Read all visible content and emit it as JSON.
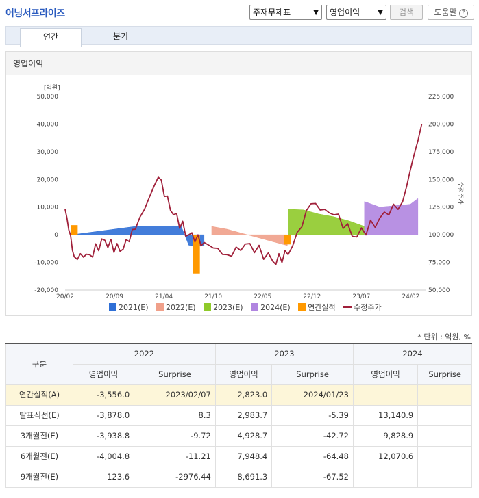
{
  "header": {
    "title": "어닝서프라이즈",
    "statement_select": "주재무제표",
    "metric_select": "영업이익",
    "search_label": "검색",
    "help_label": "도움말",
    "help_mark": "?"
  },
  "tabs": [
    {
      "label": "연간",
      "active": true
    },
    {
      "label": "분기",
      "active": false
    }
  ],
  "panel": {
    "title": "영업이익"
  },
  "chart_data": {
    "type": "area+line",
    "left_axis": {
      "unit_label": "[억원]",
      "ticks": [
        "50,000",
        "40,000",
        "30,000",
        "20,000",
        "10,000",
        "0",
        "-10,000",
        "-20,000"
      ],
      "range": [
        -20000,
        50000
      ]
    },
    "right_axis": {
      "label": "수정주가",
      "ticks": [
        "225,000",
        "200,000",
        "175,000",
        "150,000",
        "125,000",
        "100,000",
        "75,000",
        "50,000"
      ],
      "range": [
        50000,
        225000
      ]
    },
    "x_ticks": [
      "20/02",
      "20/09",
      "21/04",
      "21/10",
      "22/05",
      "22/12",
      "23/07",
      "24/02"
    ],
    "series": [
      {
        "name": "2021(E)",
        "color": "#2f6fd6",
        "x": [
          20.16,
          20.17,
          21.0,
          21.5,
          21.6,
          21.7,
          21.81,
          21.9
        ],
        "values": [
          0,
          0,
          3000,
          3200,
          3100,
          -3800,
          -4000,
          -4000
        ]
      },
      {
        "name": "2022(E)",
        "color": "#f0a08a",
        "x": [
          22.0,
          22.2,
          22.4,
          22.6,
          22.8,
          22.99
        ],
        "values": [
          3000,
          2000,
          500,
          -1000,
          -2500,
          -3900
        ]
      },
      {
        "name": "2023(E)",
        "color": "#8fca2a",
        "x": [
          23.0,
          23.2,
          23.4,
          23.6,
          23.8,
          24.0
        ],
        "values": [
          9200,
          9000,
          7500,
          6500,
          5000,
          3000
        ]
      },
      {
        "name": "2024(E)",
        "color": "#b085e0",
        "x": [
          24.0,
          24.2,
          24.4,
          24.6,
          24.7
        ],
        "values": [
          12000,
          10000,
          10500,
          11000,
          13100
        ]
      },
      {
        "name": "연간실적",
        "color": "#ff9900",
        "x": [
          20.2,
          21.8,
          22.99
        ],
        "values": [
          0,
          -14000,
          -3500
        ]
      },
      {
        "name": "수정주가",
        "color": "#a0203a",
        "x": [
          20.08,
          20.2,
          20.4,
          20.6,
          20.8,
          21.0,
          21.3,
          21.5,
          21.7,
          21.9,
          22.2,
          22.5,
          22.8,
          23.0,
          23.3,
          23.6,
          23.9,
          24.2,
          24.5,
          24.75
        ],
        "values": [
          123000,
          80000,
          82000,
          95000,
          85000,
          105000,
          152000,
          118000,
          100000,
          93000,
          82000,
          92000,
          76000,
          82000,
          128000,
          118000,
          98000,
          115000,
          130000,
          200000
        ]
      }
    ]
  },
  "unit_note": "* 단위 : 억원, %",
  "table": {
    "col_group_label": "구분",
    "years": [
      "2022",
      "2023",
      "2024"
    ],
    "sub_headers": [
      "영업이익",
      "Surprise",
      "영업이익",
      "Surprise",
      "영업이익",
      "Surprise"
    ],
    "rows": [
      {
        "label": "연간실적(A)",
        "cells": [
          "-3,556.0",
          "2023/02/07",
          "2,823.0",
          "2024/01/23",
          "",
          ""
        ]
      },
      {
        "label": "발표직전(E)",
        "cells": [
          "-3,878.0",
          "8.3",
          "2,983.7",
          "-5.39",
          "13,140.9",
          ""
        ]
      },
      {
        "label": "3개월전(E)",
        "cells": [
          "-3,938.8",
          "-9.72",
          "4,928.7",
          "-42.72",
          "9,828.9",
          ""
        ]
      },
      {
        "label": "6개월전(E)",
        "cells": [
          "-4,004.8",
          "-11.21",
          "7,948.4",
          "-64.48",
          "12,070.6",
          ""
        ]
      },
      {
        "label": "9개월전(E)",
        "cells": [
          "123.6",
          "-2976.44",
          "8,691.3",
          "-67.52",
          "",
          ""
        ]
      }
    ]
  }
}
